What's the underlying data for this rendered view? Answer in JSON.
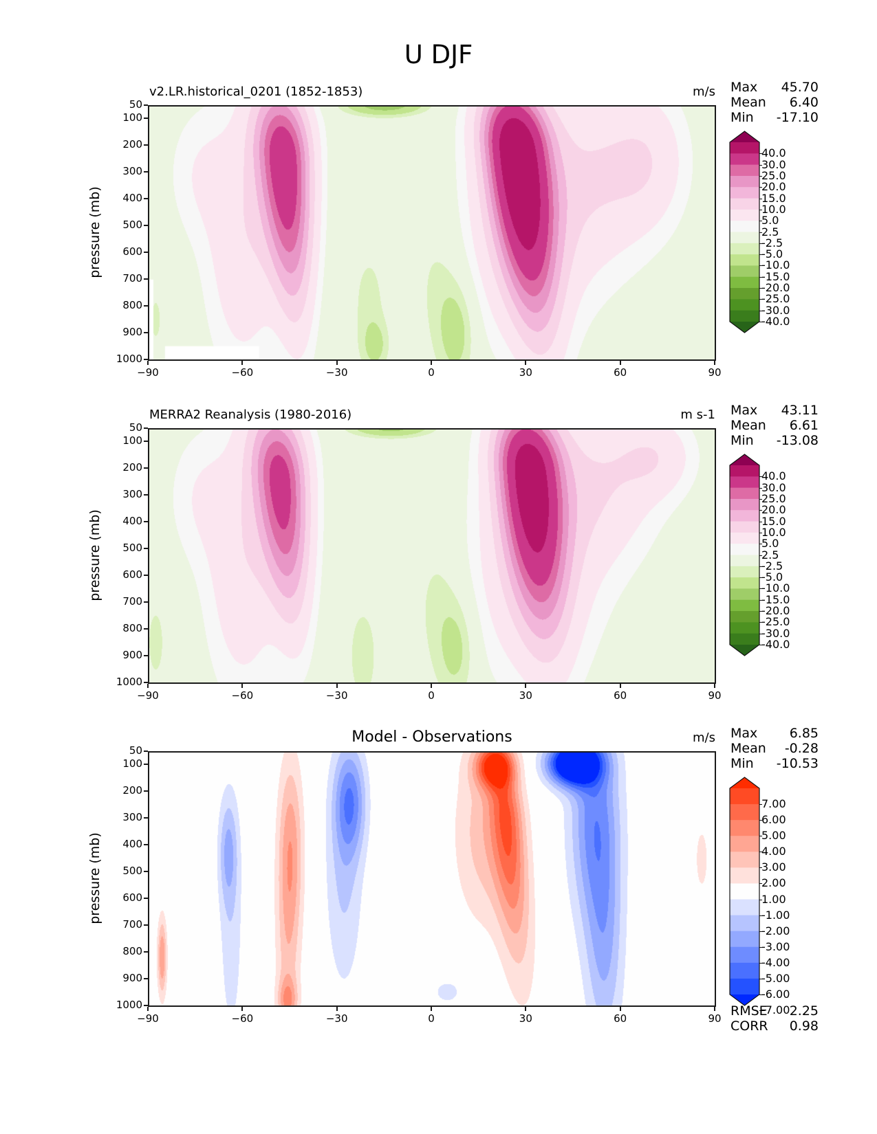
{
  "figure": {
    "title": "U DJF"
  },
  "panels": [
    {
      "id": "model",
      "title": "v2.LR.historical_0201 (1852-1853)",
      "title_position": "left",
      "units": "m/s",
      "stats": [
        {
          "label": "Max",
          "value": "45.70"
        },
        {
          "label": "Mean",
          "value": "6.40"
        },
        {
          "label": "Min",
          "value": "-17.10"
        }
      ],
      "colorbar": {
        "cmap": "PiYG_r",
        "levels": [
          -40.0,
          -30.0,
          -25.0,
          -20.0,
          -15.0,
          -10.0,
          -5.0,
          -2.5,
          2.5,
          5.0,
          10.0,
          15.0,
          20.0,
          25.0,
          30.0,
          40.0
        ],
        "labels": [
          "40.0",
          "30.0",
          "25.0",
          "20.0",
          "15.0",
          "10.0",
          "5.0",
          "2.5",
          "-2.5",
          "-5.0",
          "-10.0",
          "-15.0",
          "-20.0",
          "-25.0",
          "-30.0",
          "-40.0"
        ],
        "colors": [
          "#276419",
          "#3a7d1c",
          "#4d9221",
          "#659f2d",
          "#7fbc41",
          "#9fcd68",
          "#c1e48d",
          "#daf0bc",
          "#ecf5e1",
          "#f7f7f7",
          "#fbe6f0",
          "#f8d4e7",
          "#f2b6da",
          "#e896c6",
          "#de6ba5",
          "#cb3789",
          "#b51568",
          "#8e0152"
        ]
      }
    },
    {
      "id": "obs",
      "title": "MERRA2 Reanalysis (1980-2016)",
      "title_position": "left",
      "units": "m s-1",
      "stats": [
        {
          "label": "Max",
          "value": "43.11"
        },
        {
          "label": "Mean",
          "value": "6.61"
        },
        {
          "label": "Min",
          "value": "-13.08"
        }
      ],
      "colorbar": {
        "cmap": "PiYG_r",
        "levels": [
          -40.0,
          -30.0,
          -25.0,
          -20.0,
          -15.0,
          -10.0,
          -5.0,
          -2.5,
          2.5,
          5.0,
          10.0,
          15.0,
          20.0,
          25.0,
          30.0,
          40.0
        ],
        "labels": [
          "40.0",
          "30.0",
          "25.0",
          "20.0",
          "15.0",
          "10.0",
          "5.0",
          "2.5",
          "-2.5",
          "-5.0",
          "-10.0",
          "-15.0",
          "-20.0",
          "-25.0",
          "-30.0",
          "-40.0"
        ],
        "colors": [
          "#276419",
          "#3a7d1c",
          "#4d9221",
          "#659f2d",
          "#7fbc41",
          "#9fcd68",
          "#c1e48d",
          "#daf0bc",
          "#ecf5e1",
          "#f7f7f7",
          "#fbe6f0",
          "#f8d4e7",
          "#f2b6da",
          "#e896c6",
          "#de6ba5",
          "#cb3789",
          "#b51568",
          "#8e0152"
        ]
      }
    },
    {
      "id": "diff",
      "title": "Model - Observations",
      "title_position": "center",
      "units": "m/s",
      "stats": [
        {
          "label": "Max",
          "value": "6.85"
        },
        {
          "label": "Mean",
          "value": "-0.28"
        },
        {
          "label": "Min",
          "value": "-10.53"
        }
      ],
      "extra_stats": [
        {
          "label": "RMSE",
          "value": "2.25"
        },
        {
          "label": "CORR",
          "value": "0.98"
        }
      ],
      "colorbar": {
        "cmap": "bwr",
        "levels": [
          -7.0,
          -6.0,
          -5.0,
          -4.0,
          -3.0,
          -2.0,
          -1.0,
          1.0,
          2.0,
          3.0,
          4.0,
          5.0,
          6.0,
          7.0
        ],
        "labels": [
          "7.00",
          "6.00",
          "5.00",
          "4.00",
          "3.00",
          "2.00",
          "1.00",
          "-1.00",
          "-2.00",
          "-3.00",
          "-4.00",
          "-5.00",
          "-6.00",
          "-7.00"
        ],
        "colors": [
          "#0028ff",
          "#2452ff",
          "#4a70ff",
          "#6e8cff",
          "#93a9ff",
          "#b6c4ff",
          "#dae1ff",
          "#fefefe",
          "#ffe1dc",
          "#ffc4b8",
          "#ffa693",
          "#ff886e",
          "#ff6a4a",
          "#ff4b24",
          "#ff2d00"
        ]
      }
    }
  ],
  "chart_data": [
    {
      "type": "heatmap",
      "title": "v2.LR.historical_0201 (1852-1853)",
      "suptitle": "U DJF",
      "xlabel": "",
      "ylabel": "pressure (mb)",
      "xlim": [
        -90,
        90
      ],
      "ylim": [
        1000,
        50
      ],
      "xticks": [
        -90,
        -60,
        -30,
        0,
        30,
        60,
        90
      ],
      "xtick_labels": [
        "−90",
        "−60",
        "−30",
        "0",
        "30",
        "60",
        "90"
      ],
      "yticks": [
        50,
        100,
        200,
        300,
        400,
        500,
        600,
        700,
        800,
        900,
        1000
      ],
      "ytick_labels": [
        "50",
        "100",
        "200",
        "300",
        "400",
        "500",
        "600",
        "700",
        "800",
        "900",
        "1000"
      ],
      "units": "m/s",
      "max": 45.7,
      "mean": 6.4,
      "min": -17.1,
      "features": [
        {
          "name": "SH jet core",
          "lat": -47,
          "p": 250,
          "value": 35
        },
        {
          "name": "NH jet core",
          "lat": 27,
          "p": 210,
          "value": 45
        },
        {
          "name": "tropical easterlies upper",
          "lat": -15,
          "p": 50,
          "value": -15
        },
        {
          "name": "tropical easterlies lower",
          "lat": 8,
          "p": 900,
          "value": -6
        }
      ]
    },
    {
      "type": "heatmap",
      "title": "MERRA2 Reanalysis (1980-2016)",
      "xlabel": "",
      "ylabel": "pressure (mb)",
      "xlim": [
        -90,
        90
      ],
      "ylim": [
        1000,
        50
      ],
      "xticks": [
        -90,
        -60,
        -30,
        0,
        30,
        60,
        90
      ],
      "xtick_labels": [
        "−90",
        "−60",
        "−30",
        "0",
        "30",
        "60",
        "90"
      ],
      "yticks": [
        50,
        100,
        200,
        300,
        400,
        500,
        600,
        700,
        800,
        900,
        1000
      ],
      "ytick_labels": [
        "50",
        "100",
        "200",
        "300",
        "400",
        "500",
        "600",
        "700",
        "800",
        "900",
        "1000"
      ],
      "units": "m s-1",
      "max": 43.11,
      "mean": 6.61,
      "min": -13.08,
      "features": [
        {
          "name": "SH jet core",
          "lat": -48,
          "p": 240,
          "value": 32
        },
        {
          "name": "NH jet core",
          "lat": 31,
          "p": 200,
          "value": 43
        },
        {
          "name": "tropical easterlies upper",
          "lat": -13,
          "p": 50,
          "value": -12
        },
        {
          "name": "tropical easterlies lower",
          "lat": 8,
          "p": 850,
          "value": -6
        }
      ]
    },
    {
      "type": "heatmap",
      "title": "Model - Observations",
      "xlabel": "",
      "ylabel": "pressure (mb)",
      "xlim": [
        -90,
        90
      ],
      "ylim": [
        1000,
        50
      ],
      "xticks": [
        -90,
        -60,
        -30,
        0,
        30,
        60,
        90
      ],
      "xtick_labels": [
        "−90",
        "−60",
        "−30",
        "0",
        "30",
        "60",
        "90"
      ],
      "yticks": [
        50,
        100,
        200,
        300,
        400,
        500,
        600,
        700,
        800,
        900,
        1000
      ],
      "ytick_labels": [
        "50",
        "100",
        "200",
        "300",
        "400",
        "500",
        "600",
        "700",
        "800",
        "900",
        "1000"
      ],
      "units": "m/s",
      "max": 6.85,
      "mean": -0.28,
      "min": -10.53,
      "rmse": 2.25,
      "corr": 0.98,
      "features": [
        {
          "name": "positive max",
          "lat": 20,
          "p": 100,
          "value": 6.8
        },
        {
          "name": "negative min",
          "lat": 43,
          "p": 100,
          "value": -10.5
        },
        {
          "name": "negative SH",
          "lat": -26,
          "p": 200,
          "value": -4
        },
        {
          "name": "positive SH",
          "lat": -45,
          "p": 300,
          "value": 3
        }
      ]
    }
  ]
}
